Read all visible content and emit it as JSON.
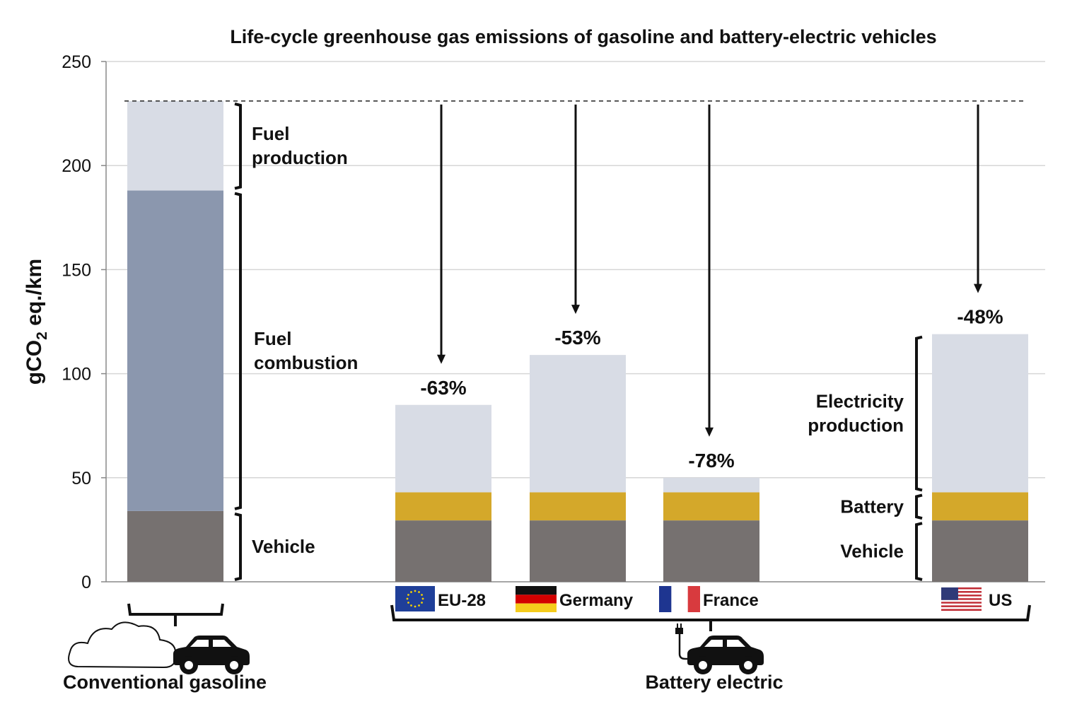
{
  "chart_data": {
    "type": "bar",
    "stacked": true,
    "title": "Life-cycle greenhouse gas emissions of gasoline and battery-electric vehicles",
    "ylabel_main": "gCO",
    "ylabel_sub": "2",
    "ylabel_tail": " eq./km",
    "ylim": [
      0,
      250
    ],
    "yticks": [
      0,
      50,
      100,
      150,
      200,
      250
    ],
    "grid": true,
    "reference_value": 231,
    "colors": {
      "vehicle": "#767170",
      "fuel_combustion": "#8b97ae",
      "fuel_production": "#d8dce5",
      "battery": "#d4a82a",
      "electricity_production": "#d8dce5"
    },
    "bars": [
      {
        "category": "",
        "segments": [
          {
            "key": "vehicle",
            "value": 34
          },
          {
            "key": "fuel_combustion",
            "value": 154
          },
          {
            "key": "fuel_production",
            "value": 43
          }
        ],
        "total": 231,
        "change": ""
      },
      {
        "category": "EU-28",
        "flag": "eu",
        "segments": [
          {
            "key": "vehicle",
            "value": 29.5
          },
          {
            "key": "battery",
            "value": 13.5
          },
          {
            "key": "electricity_production",
            "value": 42
          }
        ],
        "total": 85,
        "change": "-63%"
      },
      {
        "category": "Germany",
        "flag": "de",
        "segments": [
          {
            "key": "vehicle",
            "value": 29.5
          },
          {
            "key": "battery",
            "value": 13.5
          },
          {
            "key": "electricity_production",
            "value": 66
          }
        ],
        "total": 109,
        "change": "-53%"
      },
      {
        "category": "France",
        "flag": "fr",
        "segments": [
          {
            "key": "vehicle",
            "value": 29.5
          },
          {
            "key": "battery",
            "value": 13.5
          },
          {
            "key": "electricity_production",
            "value": 7
          }
        ],
        "total": 50,
        "change": "-78%"
      },
      {
        "category": "US",
        "flag": "us",
        "segments": [
          {
            "key": "vehicle",
            "value": 29.5
          },
          {
            "key": "battery",
            "value": 13.5
          },
          {
            "key": "electricity_production",
            "value": 76
          }
        ],
        "total": 119,
        "change": "-48%"
      }
    ],
    "gasoline_labels": {
      "fuel_production": [
        "Fuel",
        "production"
      ],
      "fuel_combustion": [
        "Fuel",
        "combustion"
      ],
      "vehicle": [
        "Vehicle"
      ]
    },
    "electric_labels": {
      "electricity_production": [
        "Electricity",
        "production"
      ],
      "battery": [
        "Battery"
      ],
      "vehicle": [
        "Vehicle"
      ]
    },
    "groups": {
      "gasoline": "Conventional gasoline",
      "electric": "Battery electric"
    },
    "icons": {
      "gasoline": [
        "cloud-icon",
        "car-icon"
      ],
      "electric": [
        "plug-icon",
        "car-icon"
      ]
    }
  }
}
